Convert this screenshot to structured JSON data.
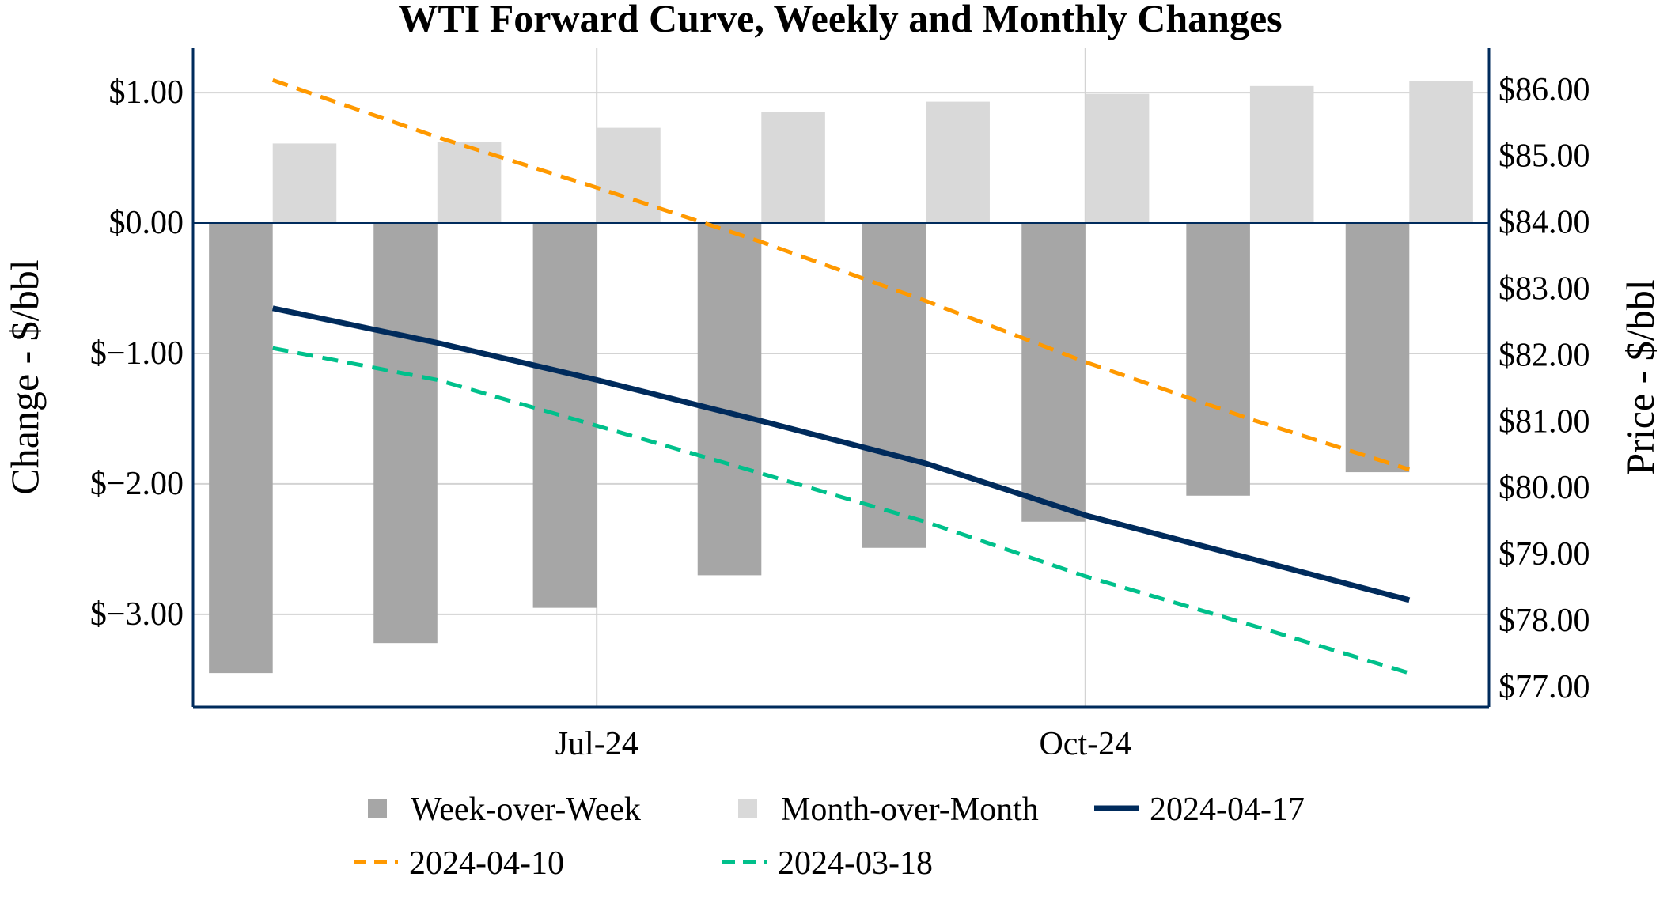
{
  "chart_data": {
    "type": "bar+line",
    "title": "WTI Forward Curve, Weekly and Monthly Changes",
    "xlabel": "",
    "ylabel_left": "Change - $/bbl",
    "ylabel_right": "Price - $/bbl",
    "x_ticks": [
      {
        "date": "2024-07-01",
        "label": "Jul-24"
      },
      {
        "date": "2024-10-01",
        "label": "Oct-24"
      }
    ],
    "xlim": [
      "2024-04-16",
      "2024-12-16"
    ],
    "ylim_left": [
      -3.71,
      1.34
    ],
    "ylim_right": [
      76.7,
      86.63
    ],
    "y_ticks_left": [
      {
        "v": 1,
        "label": "$1.00"
      },
      {
        "v": 0,
        "label": "$0.00"
      },
      {
        "v": -1,
        "label": "$−1.00"
      },
      {
        "v": -2,
        "label": "$−2.00"
      },
      {
        "v": -3,
        "label": "$−3.00"
      }
    ],
    "y_ticks_right": [
      {
        "v": 86,
        "label": "$86.00"
      },
      {
        "v": 85,
        "label": "$85.00"
      },
      {
        "v": 84,
        "label": "$84.00"
      },
      {
        "v": 83,
        "label": "$83.00"
      },
      {
        "v": 82,
        "label": "$82.00"
      },
      {
        "v": 81,
        "label": "$81.00"
      },
      {
        "v": 80,
        "label": "$80.00"
      },
      {
        "v": 79,
        "label": "$79.00"
      },
      {
        "v": 78,
        "label": "$78.00"
      },
      {
        "v": 77,
        "label": "$77.00"
      }
    ],
    "grid": true,
    "legend_placement": "bottom",
    "x": [
      "2024-05-01",
      "2024-06-01",
      "2024-07-01",
      "2024-08-01",
      "2024-09-01",
      "2024-10-01",
      "2024-11-01",
      "2024-12-01"
    ],
    "bars": [
      {
        "name": "Week-over-Week",
        "axis": "left",
        "color": "#a6a6a6",
        "values": [
          -3.45,
          -3.22,
          -2.95,
          -2.7,
          -2.49,
          -2.29,
          -2.09,
          -1.91
        ]
      },
      {
        "name": "Month-over-Month",
        "axis": "left",
        "color": "#d9d9d9",
        "values": [
          0.61,
          0.62,
          0.73,
          0.85,
          0.93,
          0.99,
          1.05,
          1.09
        ]
      }
    ],
    "series": [
      {
        "name": "2024-04-17",
        "axis": "right",
        "color": "#002b5c",
        "dash": "solid",
        "values": [
          82.71,
          82.19,
          81.63,
          81.01,
          80.37,
          79.59,
          78.94,
          78.31
        ]
      },
      {
        "name": "2024-04-10",
        "axis": "right",
        "color": "#ff9900",
        "dash": "dashed",
        "values": [
          86.15,
          85.29,
          84.53,
          83.71,
          82.82,
          81.9,
          81.04,
          80.28
        ]
      },
      {
        "name": "2024-03-18",
        "axis": "right",
        "color": "#00c08b",
        "dash": "dashed",
        "values": [
          82.11,
          81.63,
          80.94,
          80.22,
          79.49,
          78.67,
          77.94,
          77.21
        ]
      }
    ],
    "axis_color": "#002b5c",
    "grid_color": "#d3d3d3"
  }
}
